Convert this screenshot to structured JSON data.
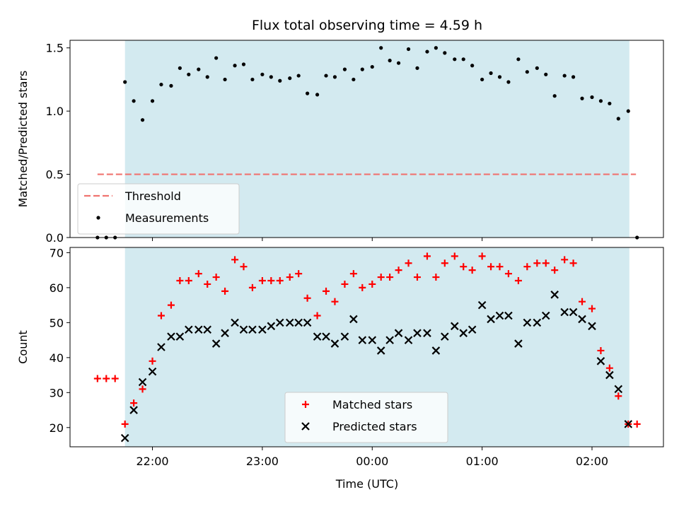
{
  "chart_data": [
    {
      "type": "scatter",
      "title": "Flux total observing time = 4.59 h",
      "ylabel": "Matched/Predicted stars",
      "xlabel": "",
      "ylim": [
        0,
        1.56
      ],
      "xlim": [
        -0.75,
        4.65
      ],
      "yticks": [
        0.0,
        0.5,
        1.0,
        1.5
      ],
      "ytick_labels": [
        "0.0",
        "0.5",
        "1.0",
        "1.5"
      ],
      "xticks": [
        0,
        1,
        2,
        3,
        4
      ],
      "show_x_tick_labels": false,
      "observing_window": [
        -0.25,
        4.34
      ],
      "window_color": "#d3eaf0",
      "threshold": {
        "value": 0.5,
        "x_range": [
          -0.5,
          4.4
        ],
        "color": "#f07470",
        "name": "Threshold"
      },
      "legend": {
        "position": "lower-left",
        "entries": [
          "Threshold",
          "Measurements"
        ]
      },
      "series": [
        {
          "name": "Measurements",
          "color": "#000000",
          "marker": "dot",
          "x": [
            -0.5,
            -0.42,
            -0.34,
            -0.25,
            -0.17,
            -0.09,
            0.0,
            0.08,
            0.17,
            0.25,
            0.33,
            0.42,
            0.5,
            0.58,
            0.66,
            0.75,
            0.83,
            0.91,
            1.0,
            1.08,
            1.16,
            1.25,
            1.33,
            1.41,
            1.5,
            1.58,
            1.66,
            1.75,
            1.83,
            1.91,
            2.0,
            2.08,
            2.16,
            2.24,
            2.33,
            2.41,
            2.5,
            2.58,
            2.66,
            2.75,
            2.83,
            2.91,
            3.0,
            3.08,
            3.16,
            3.24,
            3.33,
            3.41,
            3.5,
            3.58,
            3.66,
            3.75,
            3.83,
            3.91,
            4.0,
            4.08,
            4.16,
            4.24,
            4.33,
            4.41
          ],
          "y": [
            0.0,
            0.0,
            0.0,
            1.23,
            1.08,
            0.93,
            1.08,
            1.21,
            1.2,
            1.34,
            1.29,
            1.33,
            1.27,
            1.42,
            1.25,
            1.36,
            1.37,
            1.25,
            1.29,
            1.27,
            1.24,
            1.26,
            1.28,
            1.14,
            1.13,
            1.28,
            1.27,
            1.33,
            1.25,
            1.33,
            1.35,
            1.5,
            1.4,
            1.38,
            1.49,
            1.34,
            1.47,
            1.5,
            1.46,
            1.41,
            1.41,
            1.36,
            1.25,
            1.3,
            1.27,
            1.23,
            1.41,
            1.31,
            1.34,
            1.29,
            1.12,
            1.28,
            1.27,
            1.1,
            1.11,
            1.08,
            1.06,
            0.94,
            1.0,
            0.0
          ]
        }
      ]
    },
    {
      "type": "scatter",
      "title": "",
      "ylabel": "Count",
      "xlabel": "Time (UTC)",
      "ylim": [
        14.5,
        71.5
      ],
      "xlim": [
        -0.75,
        4.65
      ],
      "yticks": [
        20,
        30,
        40,
        50,
        60,
        70
      ],
      "ytick_labels": [
        "20",
        "30",
        "40",
        "50",
        "60",
        "70"
      ],
      "xticks": [
        0,
        1,
        2,
        3,
        4
      ],
      "xtick_labels": [
        "22:00",
        "23:00",
        "00:00",
        "01:00",
        "02:00"
      ],
      "observing_window": [
        -0.25,
        4.34
      ],
      "window_color": "#d3eaf0",
      "legend": {
        "position": "lower-center",
        "entries": [
          "Matched stars",
          "Predicted stars"
        ]
      },
      "series": [
        {
          "name": "Matched stars",
          "color": "#ff0000",
          "marker": "plus",
          "x": [
            -0.5,
            -0.42,
            -0.34,
            -0.25,
            -0.17,
            -0.09,
            0.0,
            0.08,
            0.17,
            0.25,
            0.33,
            0.42,
            0.5,
            0.58,
            0.66,
            0.75,
            0.83,
            0.91,
            1.0,
            1.08,
            1.16,
            1.25,
            1.33,
            1.41,
            1.5,
            1.58,
            1.66,
            1.75,
            1.83,
            1.91,
            2.0,
            2.08,
            2.16,
            2.24,
            2.33,
            2.41,
            2.5,
            2.58,
            2.66,
            2.75,
            2.83,
            2.91,
            3.0,
            3.08,
            3.16,
            3.24,
            3.33,
            3.41,
            3.5,
            3.58,
            3.66,
            3.75,
            3.83,
            3.91,
            4.0,
            4.08,
            4.16,
            4.24,
            4.33,
            4.41
          ],
          "y": [
            34,
            34,
            34,
            21,
            27,
            31,
            39,
            52,
            55,
            62,
            62,
            64,
            61,
            63,
            59,
            68,
            66,
            60,
            62,
            62,
            62,
            63,
            64,
            57,
            52,
            59,
            56,
            61,
            64,
            60,
            61,
            63,
            63,
            65,
            67,
            63,
            69,
            63,
            67,
            69,
            66,
            65,
            69,
            66,
            66,
            64,
            62,
            66,
            67,
            67,
            65,
            68,
            67,
            56,
            54,
            42,
            37,
            29,
            21,
            21
          ]
        },
        {
          "name": "Predicted stars",
          "color": "#000000",
          "marker": "x",
          "x": [
            -0.25,
            -0.17,
            -0.09,
            0.0,
            0.08,
            0.17,
            0.25,
            0.33,
            0.42,
            0.5,
            0.58,
            0.66,
            0.75,
            0.83,
            0.91,
            1.0,
            1.08,
            1.16,
            1.25,
            1.33,
            1.41,
            1.5,
            1.58,
            1.66,
            1.75,
            1.83,
            1.91,
            2.0,
            2.08,
            2.16,
            2.24,
            2.33,
            2.41,
            2.5,
            2.58,
            2.66,
            2.75,
            2.83,
            2.91,
            3.0,
            3.08,
            3.16,
            3.24,
            3.33,
            3.41,
            3.5,
            3.58,
            3.66,
            3.75,
            3.83,
            3.91,
            4.0,
            4.08,
            4.16,
            4.24,
            4.33
          ],
          "y": [
            17,
            25,
            33,
            36,
            43,
            46,
            46,
            48,
            48,
            48,
            44,
            47,
            50,
            48,
            48,
            48,
            49,
            50,
            50,
            50,
            50,
            46,
            46,
            44,
            46,
            51,
            45,
            45,
            42,
            45,
            47,
            45,
            47,
            47,
            42,
            46,
            49,
            47,
            48,
            55,
            51,
            52,
            52,
            44,
            50,
            50,
            52,
            58,
            53,
            53,
            51,
            49,
            39,
            35,
            31,
            21
          ]
        }
      ]
    }
  ]
}
